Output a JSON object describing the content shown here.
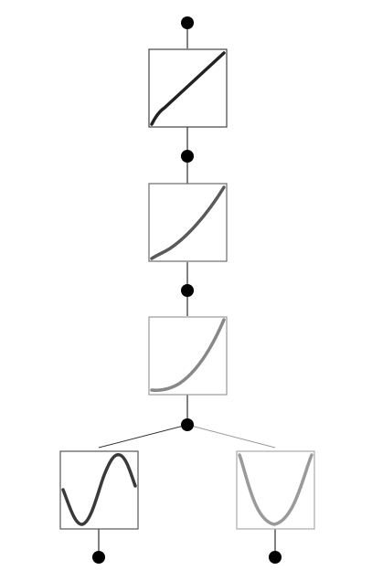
{
  "diagram": {
    "type": "network-graph",
    "nodes": [
      {
        "id": "input-node",
        "kind": "dot",
        "color": "#000000"
      },
      {
        "id": "function-box-1",
        "kind": "box",
        "curve": "linear",
        "color": "#222222",
        "border": "#444444"
      },
      {
        "id": "hidden-node-1",
        "kind": "dot",
        "color": "#000000"
      },
      {
        "id": "function-box-2",
        "kind": "box",
        "curve": "slight-convex",
        "color": "#5a5a5a",
        "border": "#6a6a6a"
      },
      {
        "id": "hidden-node-2",
        "kind": "dot",
        "color": "#000000"
      },
      {
        "id": "function-box-3",
        "kind": "box",
        "curve": "convex-increasing",
        "color": "#888888",
        "border": "#999999"
      },
      {
        "id": "branch-node",
        "kind": "dot",
        "color": "#000000"
      },
      {
        "id": "function-box-sine",
        "kind": "box",
        "curve": "sine",
        "color": "#3a3a3a",
        "border": "#555555"
      },
      {
        "id": "function-box-parabola",
        "kind": "box",
        "curve": "parabola",
        "color": "#9a9a9a",
        "border": "#aaaaaa"
      },
      {
        "id": "output-node-left",
        "kind": "dot",
        "color": "#000000"
      },
      {
        "id": "output-node-right",
        "kind": "dot",
        "color": "#000000"
      }
    ],
    "edges": [
      {
        "from": "input-node",
        "to": "function-box-1",
        "color": "#000000"
      },
      {
        "from": "function-box-1",
        "to": "hidden-node-1",
        "color": "#000000"
      },
      {
        "from": "hidden-node-1",
        "to": "function-box-2",
        "color": "#000000"
      },
      {
        "from": "function-box-2",
        "to": "hidden-node-2",
        "color": "#000000"
      },
      {
        "from": "hidden-node-2",
        "to": "function-box-3",
        "color": "#000000"
      },
      {
        "from": "function-box-3",
        "to": "branch-node",
        "color": "#000000"
      },
      {
        "from": "branch-node",
        "to": "function-box-sine",
        "color": "#333333"
      },
      {
        "from": "branch-node",
        "to": "function-box-parabola",
        "color": "#999999"
      },
      {
        "from": "function-box-sine",
        "to": "output-node-left",
        "color": "#000000"
      },
      {
        "from": "function-box-parabola",
        "to": "output-node-right",
        "color": "#000000"
      }
    ]
  }
}
